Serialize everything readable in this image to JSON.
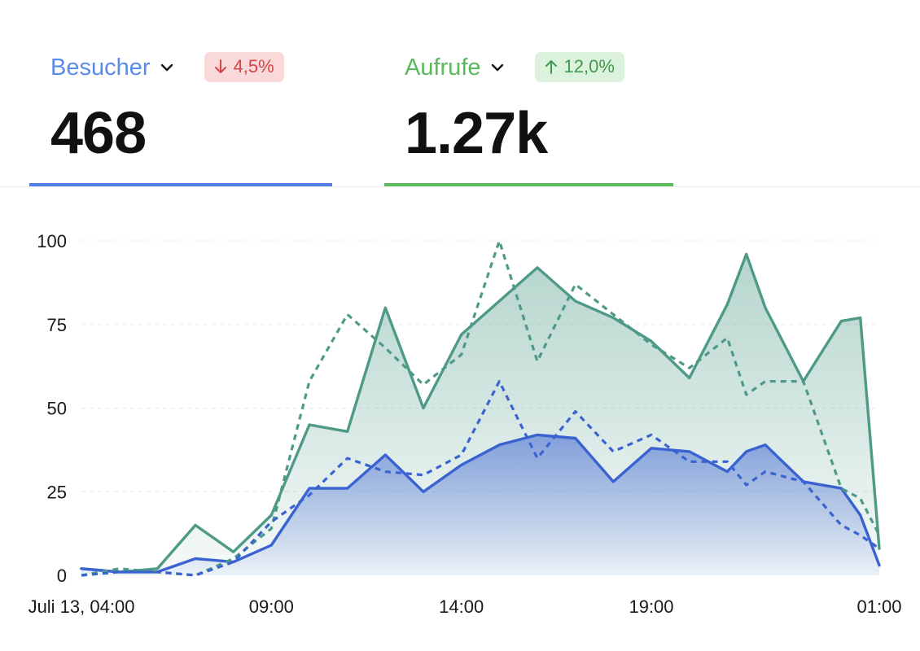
{
  "metrics": [
    {
      "label": "Besucher",
      "label_color": "#5b8be8",
      "chevron_icon": "chevron-down-icon",
      "badge": {
        "arrow_icon": "arrow-down-icon",
        "text": "4,5%",
        "text_color": "#d64545",
        "bg_color": "#f9d9d9"
      },
      "value": "468",
      "underline_color": "#4f7fe3",
      "selected": true
    },
    {
      "label": "Aufrufe",
      "label_color": "#5cb85c",
      "chevron_icon": "chevron-down-icon",
      "badge": {
        "arrow_icon": "arrow-up-icon",
        "text": "12,0%",
        "text_color": "#3f9a4f",
        "bg_color": "#ddf2dc"
      },
      "value": "1.27k",
      "underline_color": "#5cb85c",
      "selected": false
    }
  ],
  "chart_data": {
    "type": "area",
    "x": [
      "04:00",
      "05:00",
      "06:00",
      "07:00",
      "08:00",
      "09:00",
      "10:00",
      "11:00",
      "12:00",
      "13:00",
      "14:00",
      "15:00",
      "16:00",
      "17:00",
      "18:00",
      "19:00",
      "20:00",
      "21:00",
      "22:00",
      "23:00",
      "00:00",
      "01:00"
    ],
    "x_tick_labels": [
      "Juli 13, 04:00",
      "09:00",
      "14:00",
      "19:00",
      "01:00"
    ],
    "x_tick_indices": [
      0,
      5,
      10,
      15,
      21
    ],
    "y_ticks": [
      0,
      25,
      50,
      75,
      100
    ],
    "ylim": [
      0,
      100
    ],
    "grid": true,
    "series": [
      {
        "key": "aufrufe-current",
        "color": "#4e9a87",
        "style": "solid-area",
        "x": [
          0,
          1,
          2,
          3,
          4,
          5,
          6,
          7,
          8,
          9,
          10,
          11,
          12,
          13,
          14,
          15,
          16,
          17,
          17.5,
          18,
          19,
          20,
          20.5,
          21
        ],
        "values": [
          2,
          1,
          2,
          15,
          7,
          18,
          45,
          43,
          80,
          50,
          72,
          82,
          92,
          82,
          77,
          70,
          59,
          81,
          96,
          80,
          58,
          76,
          77,
          8
        ]
      },
      {
        "key": "aufrufe-previous",
        "color": "#4e9a87",
        "style": "dashed",
        "x": [
          0,
          1,
          2,
          3,
          4,
          5,
          6,
          7,
          8,
          9,
          10,
          11,
          12,
          13,
          14,
          15,
          16,
          17,
          17.5,
          18,
          19,
          20,
          20.5,
          21
        ],
        "values": [
          0,
          2,
          1,
          0,
          5,
          14,
          58,
          78,
          68,
          57,
          66,
          100,
          64,
          87,
          78,
          69,
          62,
          71,
          54,
          58,
          58,
          26,
          23,
          12
        ]
      },
      {
        "key": "besucher-current",
        "color": "#3a63d1",
        "style": "solid-area",
        "x": [
          0,
          1,
          2,
          3,
          4,
          5,
          6,
          7,
          8,
          9,
          10,
          11,
          12,
          13,
          14,
          15,
          16,
          17,
          17.5,
          18,
          19,
          20,
          20.5,
          21
        ],
        "values": [
          2,
          1,
          1,
          5,
          4,
          9,
          26,
          26,
          36,
          25,
          33,
          39,
          42,
          41,
          28,
          38,
          37,
          31,
          37,
          39,
          28,
          26,
          18,
          3
        ]
      },
      {
        "key": "besucher-previous",
        "color": "#3a63d1",
        "style": "dashed",
        "x": [
          0,
          1,
          2,
          3,
          4,
          5,
          6,
          7,
          8,
          9,
          10,
          11,
          12,
          13,
          14,
          15,
          16,
          17,
          17.5,
          18,
          19,
          20,
          20.5,
          21
        ],
        "values": [
          0,
          1,
          1,
          0,
          4,
          16,
          24,
          35,
          31,
          30,
          36,
          58,
          35,
          49,
          37,
          42,
          34,
          34,
          27,
          31,
          28,
          15,
          12,
          8
        ]
      }
    ]
  }
}
